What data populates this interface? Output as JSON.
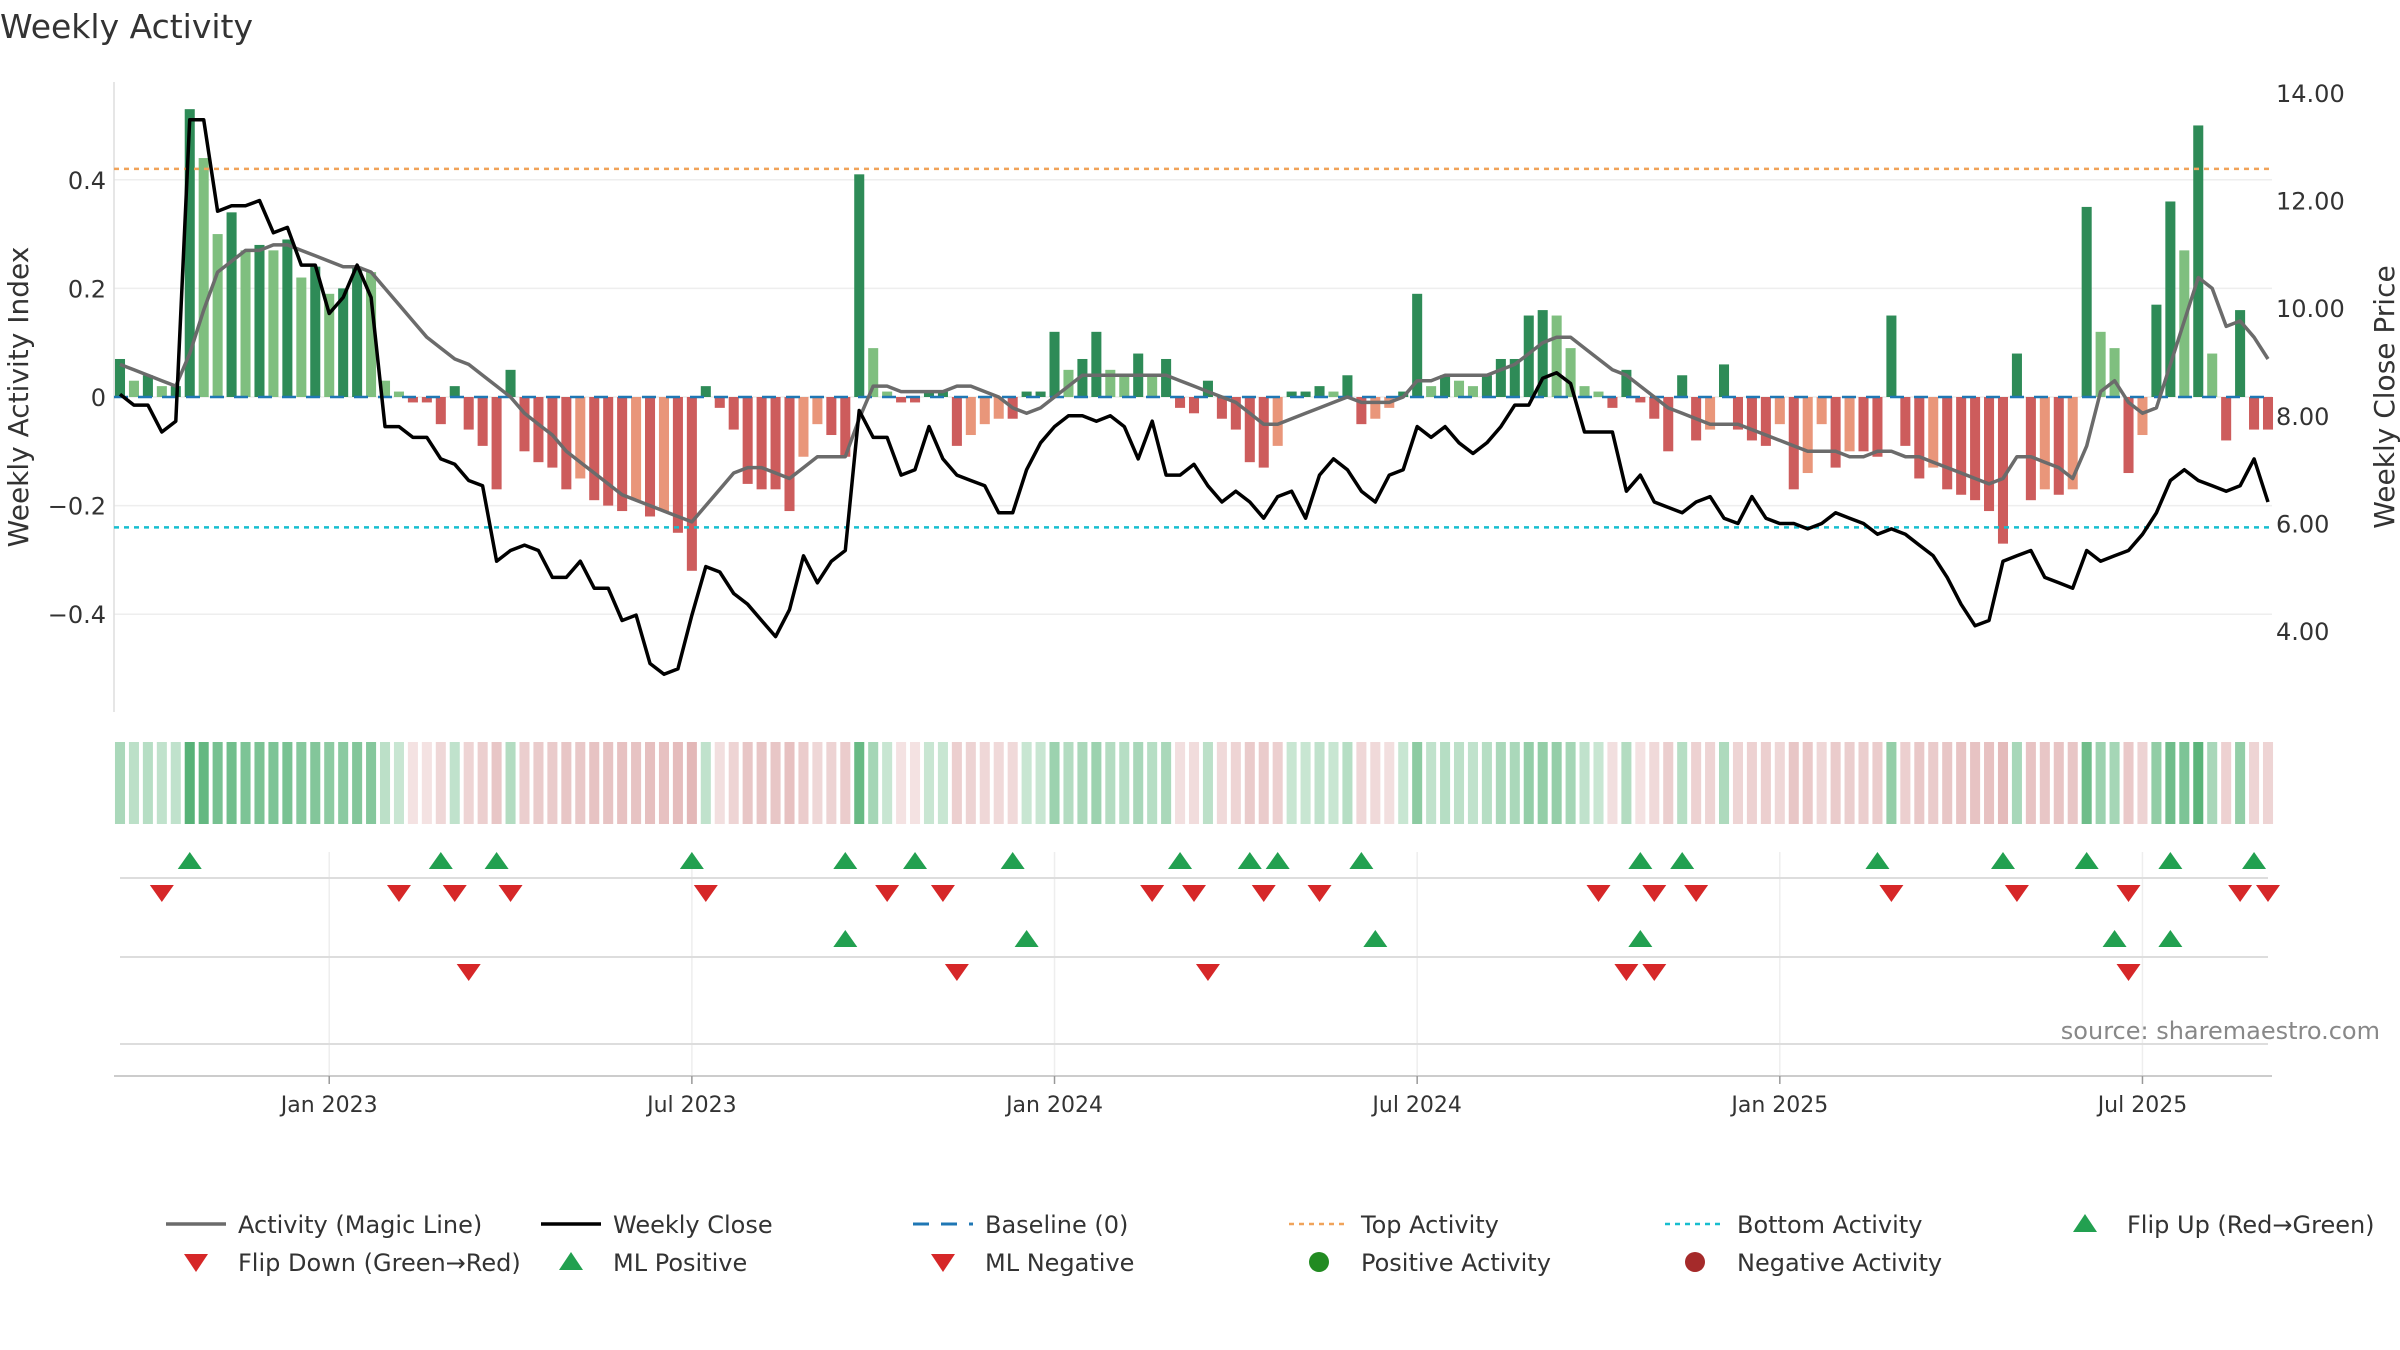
{
  "chart_data": {
    "type": "bar",
    "title": "Weekly Activity",
    "ylabel_left": "Weekly Activity Index",
    "ylabel_right": "Weekly Close Price",
    "ylim_left": [
      -0.58,
      0.58
    ],
    "ylim_right": [
      2.5,
      14.2
    ],
    "yticks_left": [
      {
        "value": 0.4,
        "label": "0.4"
      },
      {
        "value": 0.2,
        "label": "0.2"
      },
      {
        "value": 0,
        "label": "0"
      },
      {
        "value": -0.2,
        "label": "−0.2"
      },
      {
        "value": -0.4,
        "label": "−0.4"
      }
    ],
    "yticks_right": [
      {
        "value": 14,
        "label": "14.00"
      },
      {
        "value": 12,
        "label": "12.00"
      },
      {
        "value": 10,
        "label": "10.00"
      },
      {
        "value": 8,
        "label": "8.00"
      },
      {
        "value": 6,
        "label": "6.00"
      },
      {
        "value": 4,
        "label": "4.00"
      }
    ],
    "xticks": [
      {
        "index": 15,
        "label": "Jan 2023"
      },
      {
        "index": 41,
        "label": "Jul 2023"
      },
      {
        "index": 67,
        "label": "Jan 2024"
      },
      {
        "index": 93,
        "label": "Jul 2024"
      },
      {
        "index": 119,
        "label": "Jan 2025"
      },
      {
        "index": 145,
        "label": "Jul 2025"
      }
    ],
    "top_activity": 0.42,
    "bottom_activity": -0.24,
    "activity": [
      0.07,
      0.03,
      0.04,
      0.02,
      0.02,
      0.53,
      0.44,
      0.3,
      0.34,
      0.27,
      0.28,
      0.27,
      0.29,
      0.22,
      0.24,
      0.19,
      0.2,
      0.24,
      0.23,
      0.03,
      0.01,
      -0.01,
      -0.01,
      -0.05,
      0.02,
      -0.06,
      -0.09,
      -0.17,
      0.05,
      -0.1,
      -0.12,
      -0.13,
      -0.17,
      -0.15,
      -0.19,
      -0.2,
      -0.21,
      -0.19,
      -0.22,
      -0.21,
      -0.25,
      -0.32,
      0.02,
      -0.02,
      -0.06,
      -0.16,
      -0.17,
      -0.17,
      -0.21,
      -0.11,
      -0.05,
      -0.07,
      -0.11,
      0.41,
      0.09,
      0.01,
      -0.01,
      -0.01,
      0.01,
      0.01,
      -0.09,
      -0.07,
      -0.05,
      -0.04,
      -0.04,
      0.01,
      0.01,
      0.12,
      0.05,
      0.07,
      0.12,
      0.05,
      0.04,
      0.08,
      0.04,
      0.07,
      -0.02,
      -0.03,
      0.03,
      -0.04,
      -0.06,
      -0.12,
      -0.13,
      -0.09,
      0.01,
      0.01,
      0.02,
      0.01,
      0.04,
      -0.05,
      -0.04,
      -0.02,
      0.01,
      0.19,
      0.02,
      0.04,
      0.03,
      0.02,
      0.04,
      0.07,
      0.07,
      0.15,
      0.16,
      0.15,
      0.09,
      0.02,
      0.01,
      -0.02,
      0.05,
      -0.01,
      -0.04,
      -0.1,
      0.04,
      -0.08,
      -0.06,
      0.06,
      -0.06,
      -0.08,
      -0.09,
      -0.05,
      -0.17,
      -0.14,
      -0.05,
      -0.13,
      -0.1,
      -0.1,
      -0.11,
      0.15,
      -0.09,
      -0.15,
      -0.13,
      -0.17,
      -0.18,
      -0.19,
      -0.21,
      -0.27,
      0.08,
      -0.19,
      -0.17,
      -0.18,
      -0.17,
      0.35,
      0.12,
      0.09,
      -0.14,
      -0.07,
      0.17,
      0.36,
      0.27,
      0.5,
      0.08,
      -0.08,
      0.16,
      -0.06,
      -0.06
    ],
    "magic_line": [
      0.06,
      0.05,
      0.04,
      0.03,
      0.02,
      0.08,
      0.16,
      0.23,
      0.25,
      0.27,
      0.27,
      0.28,
      0.28,
      0.27,
      0.26,
      0.25,
      0.24,
      0.24,
      0.23,
      0.2,
      0.17,
      0.14,
      0.11,
      0.09,
      0.07,
      0.06,
      0.04,
      0.02,
      0,
      -0.03,
      -0.05,
      -0.07,
      -0.1,
      -0.12,
      -0.14,
      -0.16,
      -0.18,
      -0.19,
      -0.2,
      -0.21,
      -0.22,
      -0.23,
      -0.2,
      -0.17,
      -0.14,
      -0.13,
      -0.13,
      -0.14,
      -0.15,
      -0.13,
      -0.11,
      -0.11,
      -0.11,
      -0.04,
      0.02,
      0.02,
      0.01,
      0.01,
      0.01,
      0.01,
      0.02,
      0.02,
      0.01,
      0,
      -0.02,
      -0.03,
      -0.02,
      0,
      0.02,
      0.04,
      0.04,
      0.04,
      0.04,
      0.04,
      0.04,
      0.04,
      0.03,
      0.02,
      0.01,
      0,
      -0.01,
      -0.03,
      -0.05,
      -0.05,
      -0.04,
      -0.03,
      -0.02,
      -0.01,
      0,
      -0.01,
      -0.01,
      -0.01,
      0,
      0.03,
      0.03,
      0.04,
      0.04,
      0.04,
      0.04,
      0.05,
      0.06,
      0.08,
      0.1,
      0.11,
      0.11,
      0.09,
      0.07,
      0.05,
      0.04,
      0.02,
      0,
      -0.02,
      -0.03,
      -0.04,
      -0.05,
      -0.05,
      -0.05,
      -0.06,
      -0.07,
      -0.08,
      -0.09,
      -0.1,
      -0.1,
      -0.1,
      -0.11,
      -0.11,
      -0.1,
      -0.1,
      -0.11,
      -0.11,
      -0.12,
      -0.13,
      -0.14,
      -0.15,
      -0.16,
      -0.15,
      -0.11,
      -0.11,
      -0.12,
      -0.13,
      -0.15,
      -0.09,
      0.01,
      0.03,
      -0.01,
      -0.03,
      -0.02,
      0.06,
      0.14,
      0.22,
      0.2,
      0.13,
      0.14,
      0.11,
      0.07
    ],
    "weekly_close": [
      8.4,
      8.2,
      8.2,
      7.7,
      7.9,
      13.5,
      13.5,
      11.8,
      11.9,
      11.9,
      12.0,
      11.4,
      11.5,
      10.8,
      10.8,
      9.9,
      10.2,
      10.8,
      10.2,
      7.8,
      7.8,
      7.6,
      7.6,
      7.2,
      7.1,
      6.8,
      6.7,
      5.3,
      5.5,
      5.6,
      5.5,
      5.0,
      5.0,
      5.3,
      4.8,
      4.8,
      4.2,
      4.3,
      3.4,
      3.2,
      3.3,
      4.3,
      5.2,
      5.1,
      4.7,
      4.5,
      4.2,
      3.9,
      4.4,
      5.4,
      4.9,
      5.3,
      5.5,
      8.1,
      7.6,
      7.6,
      6.9,
      7.0,
      7.8,
      7.2,
      6.9,
      6.8,
      6.7,
      6.2,
      6.2,
      7.0,
      7.5,
      7.8,
      8.0,
      8.0,
      7.9,
      8.0,
      7.8,
      7.2,
      7.9,
      6.9,
      6.9,
      7.1,
      6.7,
      6.4,
      6.6,
      6.4,
      6.1,
      6.5,
      6.6,
      6.1,
      6.9,
      7.2,
      7.0,
      6.6,
      6.4,
      6.9,
      7.0,
      7.8,
      7.6,
      7.8,
      7.5,
      7.3,
      7.5,
      7.8,
      8.2,
      8.2,
      8.7,
      8.8,
      8.6,
      7.7,
      7.7,
      7.7,
      6.6,
      6.9,
      6.4,
      6.3,
      6.2,
      6.4,
      6.5,
      6.1,
      6.0,
      6.5,
      6.1,
      6.0,
      6.0,
      5.9,
      6.0,
      6.2,
      6.1,
      6.0,
      5.8,
      5.9,
      5.8,
      5.6,
      5.4,
      5.0,
      4.5,
      4.1,
      4.2,
      5.3,
      5.4,
      5.5,
      5.0,
      4.9,
      4.8,
      5.5,
      5.3,
      5.4,
      5.5,
      5.8,
      6.2,
      6.8,
      7.0,
      6.8,
      6.7,
      6.6,
      6.7,
      7.2,
      6.4
    ],
    "flip_up_index": [
      5,
      23,
      27,
      41,
      52,
      57,
      64,
      76,
      81,
      83,
      89,
      109,
      112,
      126,
      135,
      141,
      147,
      153
    ],
    "flip_down_index": [
      3,
      20,
      24,
      28,
      42,
      55,
      59,
      74,
      77,
      82,
      86,
      106,
      110,
      113,
      127,
      136,
      144,
      152,
      154
    ],
    "ml_positive_index": [
      52,
      65,
      90,
      109,
      143,
      147
    ],
    "ml_negative_index": [
      25,
      60,
      78,
      108,
      110,
      144
    ],
    "legend": [
      "Activity (Magic Line)",
      "Weekly Close",
      "Baseline (0)",
      "Top Activity",
      "Bottom Activity",
      "Flip Up (Red→Green)",
      "Flip Down (Green→Red)",
      "ML Positive",
      "ML Negative",
      "Positive Activity",
      "Negative Activity"
    ],
    "annotation": "source: sharemaestro.com"
  },
  "colors": {
    "pos_strong": "#2e8b57",
    "pos_light": "#7fbf7f",
    "neg_strong": "#cd5c5c",
    "neg_light": "#e9967a",
    "magic_line": "#6b6b6b",
    "close_line": "#000000",
    "baseline": "#1f77b4",
    "top_line": "#f0a35a",
    "bottom_line": "#17becf",
    "flip_up": "#22a050",
    "flip_down": "#d62728",
    "pos_dot": "#228b22",
    "neg_dot": "#a52a2a"
  }
}
